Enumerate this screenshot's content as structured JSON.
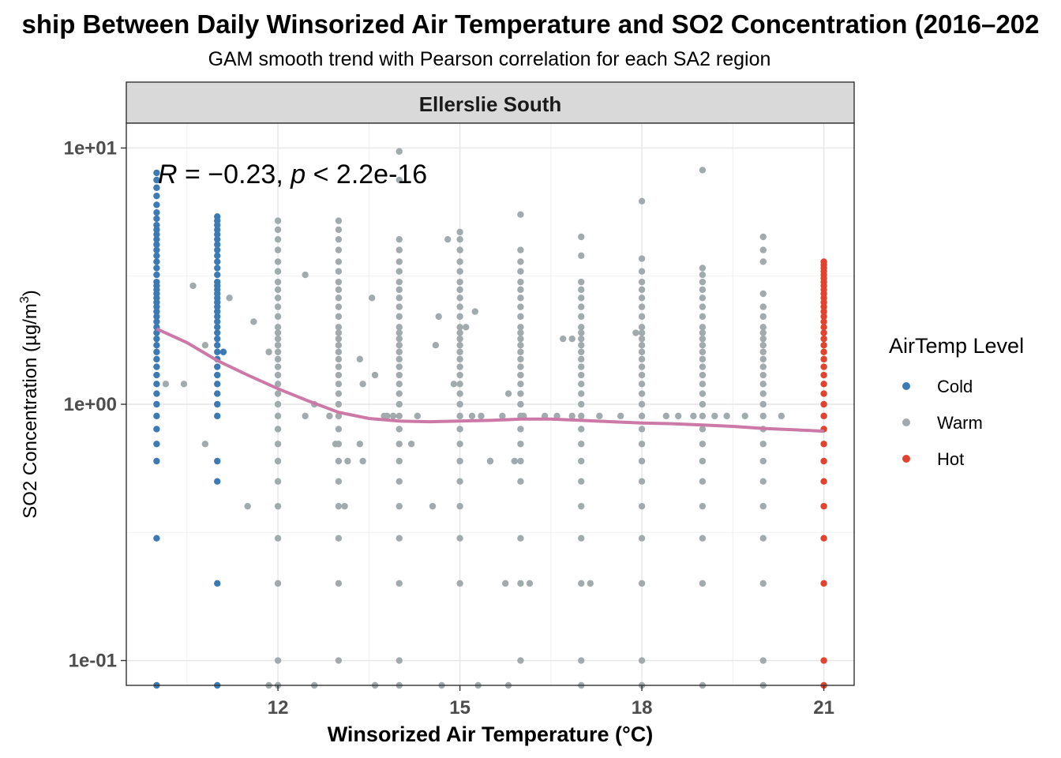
{
  "chart_data": {
    "type": "scatter",
    "title": "ship Between Daily Winsorized Air Temperature and SO2 Concentration (2016–202",
    "subtitle": "GAM smooth trend with Pearson correlation for each SA2 region",
    "facet": "Ellerslie South",
    "xlabel": "Winsorized Air Temperature (°C)",
    "ylabel": "SO2 Concentration (µg/m³)",
    "ylabel_parts": [
      "SO2 Concentration (",
      "µg/m",
      "3",
      ")"
    ],
    "x_range": [
      9.5,
      21.5
    ],
    "y_range": [
      0.08,
      12.5
    ],
    "y_scale": "log10",
    "x_ticks": [
      12,
      15,
      18,
      21
    ],
    "y_ticks": [
      0.1,
      1,
      10
    ],
    "x_tick_labels": [
      "12",
      "15",
      "18",
      "21"
    ],
    "y_tick_labels": [
      "1e-01",
      "1e+00",
      "1e+01"
    ],
    "grid": true,
    "legend": {
      "title": "AirTemp Level",
      "placement": "right",
      "items": [
        {
          "label": "Cold",
          "color": "#3b7ab5"
        },
        {
          "label": "Warm",
          "color": "#a1aaad"
        },
        {
          "label": "Hot",
          "color": "#e0442f"
        }
      ]
    },
    "annotation": {
      "R_symbol": "R",
      "R_value": " = −0.23, ",
      "p_symbol": "p",
      "p_value": " < 2.2e-16"
    },
    "smooth_color": "#cc79a7",
    "smooth": [
      [
        10.0,
        1.97
      ],
      [
        10.5,
        1.74
      ],
      [
        11.0,
        1.48
      ],
      [
        11.5,
        1.3
      ],
      [
        12.0,
        1.15
      ],
      [
        12.5,
        1.03
      ],
      [
        13.0,
        0.93
      ],
      [
        13.5,
        0.88
      ],
      [
        14.0,
        0.86
      ],
      [
        14.5,
        0.855
      ],
      [
        15.0,
        0.86
      ],
      [
        15.5,
        0.865
      ],
      [
        16.0,
        0.875
      ],
      [
        16.5,
        0.875
      ],
      [
        17.0,
        0.865
      ],
      [
        17.5,
        0.855
      ],
      [
        18.0,
        0.845
      ],
      [
        18.5,
        0.84
      ],
      [
        19.0,
        0.83
      ],
      [
        19.5,
        0.82
      ],
      [
        20.0,
        0.805
      ],
      [
        20.5,
        0.795
      ],
      [
        21.0,
        0.785
      ]
    ],
    "series": [
      {
        "name": "Cold",
        "color": "#3b7ab5",
        "columns": [
          {
            "x": 10,
            "y": [
              0.08,
              0.3,
              0.6,
              0.7,
              0.8,
              0.9,
              1.0,
              1.1,
              1.2,
              1.3,
              1.4,
              1.5,
              1.6,
              1.7,
              1.8,
              1.9,
              2.0,
              2.1,
              2.2,
              2.3,
              2.4,
              2.5,
              2.6,
              2.7,
              2.8,
              2.9,
              3.0,
              3.2,
              3.4,
              3.6,
              3.8,
              4.0,
              4.2,
              4.4,
              4.6,
              4.8,
              5.0,
              5.3,
              5.6,
              6.0,
              6.5,
              7.0,
              7.5,
              8.0
            ]
          },
          {
            "x": 11,
            "y": [
              0.08,
              0.2,
              0.5,
              0.6,
              0.9,
              1.0,
              1.1,
              1.2,
              1.3,
              1.4,
              1.5,
              1.6,
              1.7,
              1.8,
              1.9,
              2.0,
              2.1,
              2.2,
              2.3,
              2.4,
              2.5,
              2.6,
              2.7,
              2.8,
              2.9,
              3.0,
              3.2,
              3.4,
              3.6,
              3.8,
              4.0,
              4.2,
              4.4,
              4.6,
              4.8,
              5.0,
              5.2,
              5.4
            ]
          }
        ],
        "points": [
          [
            11.1,
            1.6
          ]
        ]
      },
      {
        "name": "Warm",
        "color": "#a1aaad",
        "columns": [
          {
            "x": 12,
            "y": [
              0.08,
              0.1,
              0.2,
              0.3,
              0.4,
              0.5,
              0.6,
              0.7,
              0.8,
              0.9,
              1.0,
              1.1,
              1.2,
              1.3,
              1.4,
              1.5,
              1.6,
              1.7,
              1.8,
              1.9,
              2.0,
              2.2,
              2.4,
              2.6,
              2.8,
              3.0,
              3.3,
              3.6,
              4.0,
              4.4,
              4.8,
              5.2
            ]
          },
          {
            "x": 13,
            "y": [
              0.1,
              0.2,
              0.3,
              0.4,
              0.5,
              0.6,
              0.7,
              0.8,
              0.9,
              1.0,
              1.1,
              1.2,
              1.3,
              1.4,
              1.5,
              1.6,
              1.7,
              1.8,
              1.9,
              2.0,
              2.2,
              2.4,
              2.6,
              2.8,
              3.0,
              3.3,
              3.6,
              4.0,
              4.4,
              4.8,
              5.2
            ]
          },
          {
            "x": 14,
            "y": [
              0.08,
              0.1,
              0.2,
              0.3,
              0.4,
              0.5,
              0.6,
              0.7,
              0.8,
              0.9,
              1.0,
              1.1,
              1.2,
              1.3,
              1.4,
              1.5,
              1.6,
              1.7,
              1.8,
              1.9,
              2.0,
              2.2,
              2.4,
              2.6,
              2.8,
              3.0,
              3.3,
              3.6,
              4.0,
              4.4,
              7.5,
              9.7
            ]
          },
          {
            "x": 15,
            "y": [
              0.2,
              0.3,
              0.4,
              0.5,
              0.6,
              0.7,
              0.8,
              0.9,
              1.0,
              1.1,
              1.2,
              1.3,
              1.4,
              1.5,
              1.6,
              1.7,
              1.8,
              1.9,
              2.0,
              2.2,
              2.4,
              2.6,
              2.8,
              3.0,
              3.3,
              3.6,
              4.0,
              4.4,
              4.7
            ]
          },
          {
            "x": 16,
            "y": [
              0.1,
              0.2,
              0.3,
              0.5,
              0.6,
              0.7,
              0.8,
              0.9,
              1.0,
              1.1,
              1.2,
              1.3,
              1.4,
              1.5,
              1.6,
              1.7,
              1.8,
              1.9,
              2.0,
              2.2,
              2.4,
              2.6,
              2.8,
              3.0,
              3.3,
              3.6,
              4.0,
              5.5
            ]
          },
          {
            "x": 17,
            "y": [
              0.08,
              0.1,
              0.2,
              0.3,
              0.4,
              0.5,
              0.6,
              0.7,
              0.8,
              0.9,
              1.0,
              1.1,
              1.2,
              1.3,
              1.4,
              1.5,
              1.6,
              1.7,
              1.8,
              1.9,
              2.0,
              2.2,
              2.4,
              2.6,
              2.8,
              3.0,
              3.8,
              4.5
            ]
          },
          {
            "x": 18,
            "y": [
              0.08,
              0.1,
              0.2,
              0.3,
              0.4,
              0.5,
              0.6,
              0.7,
              0.8,
              0.9,
              1.0,
              1.1,
              1.2,
              1.3,
              1.4,
              1.5,
              1.6,
              1.7,
              1.8,
              1.9,
              2.0,
              2.2,
              2.4,
              2.6,
              2.8,
              3.0,
              3.3,
              3.7,
              6.2
            ]
          },
          {
            "x": 19,
            "y": [
              0.08,
              0.2,
              0.3,
              0.4,
              0.5,
              0.6,
              0.7,
              0.8,
              0.9,
              1.0,
              1.1,
              1.2,
              1.3,
              1.4,
              1.5,
              1.6,
              1.7,
              1.8,
              1.9,
              2.0,
              2.2,
              2.4,
              2.6,
              2.8,
              3.0,
              3.2,
              3.4,
              8.2
            ]
          },
          {
            "x": 20,
            "y": [
              0.08,
              0.1,
              0.2,
              0.3,
              0.4,
              0.5,
              0.6,
              0.7,
              0.8,
              0.9,
              1.0,
              1.1,
              1.2,
              1.3,
              1.4,
              1.5,
              1.6,
              1.7,
              1.8,
              1.9,
              2.0,
              2.2,
              2.4,
              2.7,
              3.6,
              4.0,
              4.5
            ]
          }
        ],
        "points": [
          [
            10.15,
            1.2
          ],
          [
            10.45,
            1.2
          ],
          [
            10.6,
            2.9
          ],
          [
            10.8,
            0.7
          ],
          [
            10.8,
            1.7
          ],
          [
            11.2,
            2.6
          ],
          [
            11.5,
            0.4
          ],
          [
            11.6,
            2.1
          ],
          [
            11.85,
            1.6
          ],
          [
            12.45,
            3.2
          ],
          [
            11.85,
            0.08
          ],
          [
            12.45,
            0.9
          ],
          [
            12.6,
            1.0
          ],
          [
            12.85,
            0.9
          ],
          [
            12.95,
            0.7
          ],
          [
            13.1,
            0.4
          ],
          [
            13.15,
            0.6
          ],
          [
            13.35,
            1.5
          ],
          [
            13.35,
            0.7
          ],
          [
            13.4,
            1.2
          ],
          [
            13.4,
            0.6
          ],
          [
            13.8,
            0.9
          ],
          [
            13.75,
            0.9
          ],
          [
            13.55,
            2.6
          ],
          [
            13.6,
            1.3
          ],
          [
            13.9,
            0.9
          ],
          [
            14.2,
            0.7
          ],
          [
            14.55,
            0.4
          ],
          [
            14.3,
            0.9
          ],
          [
            14.6,
            1.7
          ],
          [
            14.65,
            2.2
          ],
          [
            14.8,
            4.4
          ],
          [
            14.9,
            1.2
          ],
          [
            15.2,
            0.9
          ],
          [
            15.25,
            2.3
          ],
          [
            15.35,
            0.9
          ],
          [
            15.5,
            0.6
          ],
          [
            15.5,
            0.6
          ],
          [
            15.7,
            0.9
          ],
          [
            15.75,
            0.2
          ],
          [
            15.8,
            1.1
          ],
          [
            15.9,
            0.6
          ],
          [
            16.05,
            0.9
          ],
          [
            16.15,
            0.2
          ],
          [
            16.4,
            0.9
          ],
          [
            16.6,
            0.9
          ],
          [
            16.7,
            1.8
          ],
          [
            16.85,
            1.8
          ],
          [
            16.85,
            0.9
          ],
          [
            17.15,
            0.2
          ],
          [
            17.3,
            0.9
          ],
          [
            17.65,
            0.9
          ],
          [
            17.9,
            1.9
          ],
          [
            18.4,
            0.9
          ],
          [
            18.6,
            0.9
          ],
          [
            18.85,
            0.9
          ],
          [
            19.2,
            0.9
          ],
          [
            19.4,
            0.9
          ],
          [
            19.7,
            0.9
          ],
          [
            20.3,
            0.9
          ],
          [
            16.0,
            1.3
          ],
          [
            15.8,
            0.08
          ],
          [
            15.3,
            0.08
          ],
          [
            14.7,
            0.08
          ],
          [
            13.6,
            0.08
          ],
          [
            12.6,
            0.08
          ],
          [
            15.1,
            2.0
          ]
        ]
      },
      {
        "name": "Hot",
        "color": "#e0442f",
        "columns": [
          {
            "x": 21,
            "y": [
              0.08,
              0.1,
              0.2,
              0.3,
              0.4,
              0.5,
              0.6,
              0.7,
              0.8,
              0.9,
              1.0,
              1.1,
              1.2,
              1.3,
              1.4,
              1.5,
              1.6,
              1.7,
              1.8,
              1.9,
              2.0,
              2.1,
              2.2,
              2.3,
              2.4,
              2.5,
              2.6,
              2.7,
              2.8,
              2.9,
              3.0,
              3.1,
              3.2,
              3.3,
              3.4,
              3.5,
              3.6
            ]
          }
        ],
        "points": []
      }
    ]
  }
}
